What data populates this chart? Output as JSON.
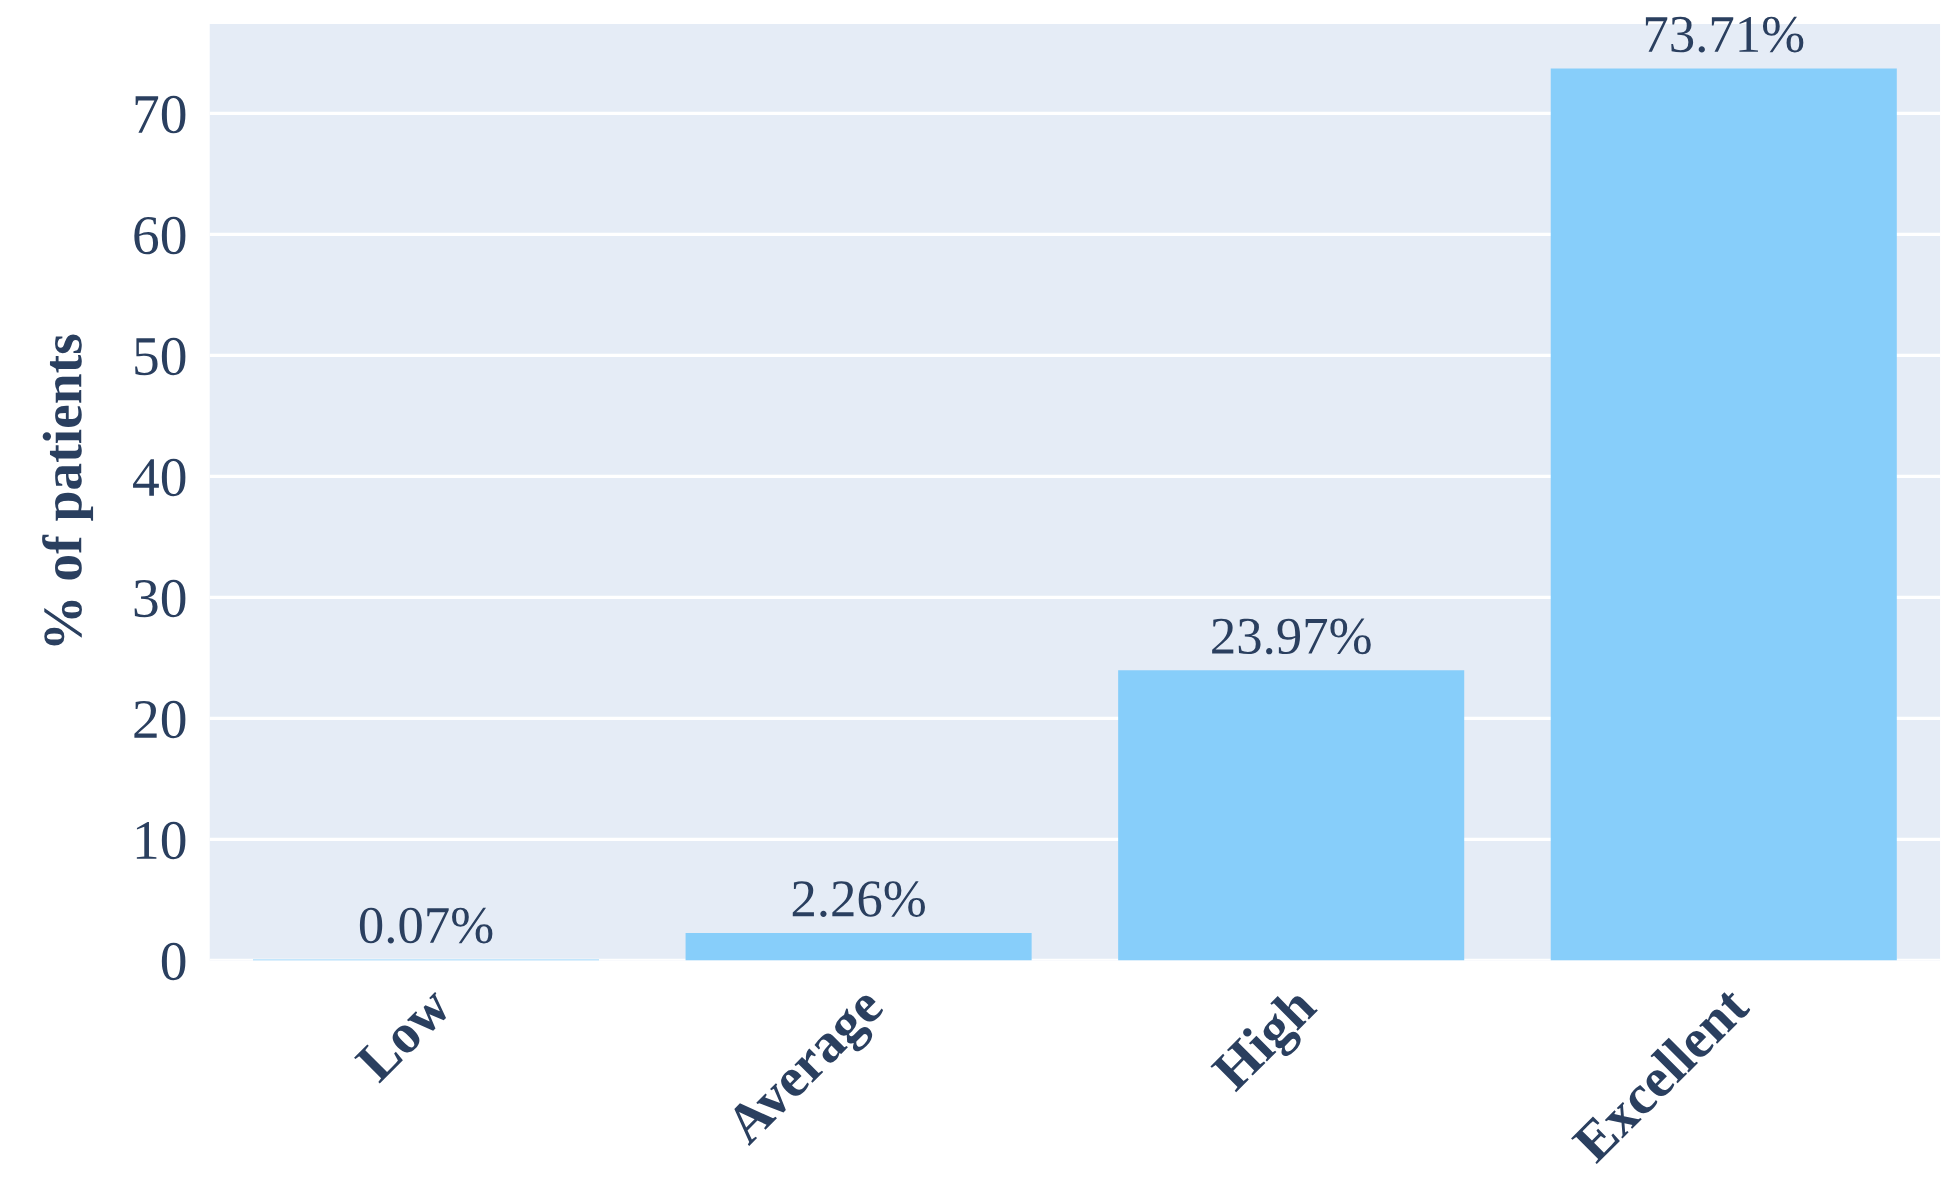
{
  "chart_data": {
    "type": "bar",
    "ylabel": "% of patients",
    "categories": [
      "Low",
      "Average",
      "High",
      "Excellent"
    ],
    "values": [
      0.07,
      2.26,
      23.97,
      73.71
    ],
    "value_labels": [
      "0.07%",
      "2.26%",
      "23.97%",
      "73.71%"
    ],
    "color": "#87cefa",
    "ylim": [
      0,
      77.4
    ],
    "yticks": [
      0,
      10,
      20,
      30,
      40,
      50,
      60,
      70
    ],
    "grid": "y",
    "legend": false
  }
}
